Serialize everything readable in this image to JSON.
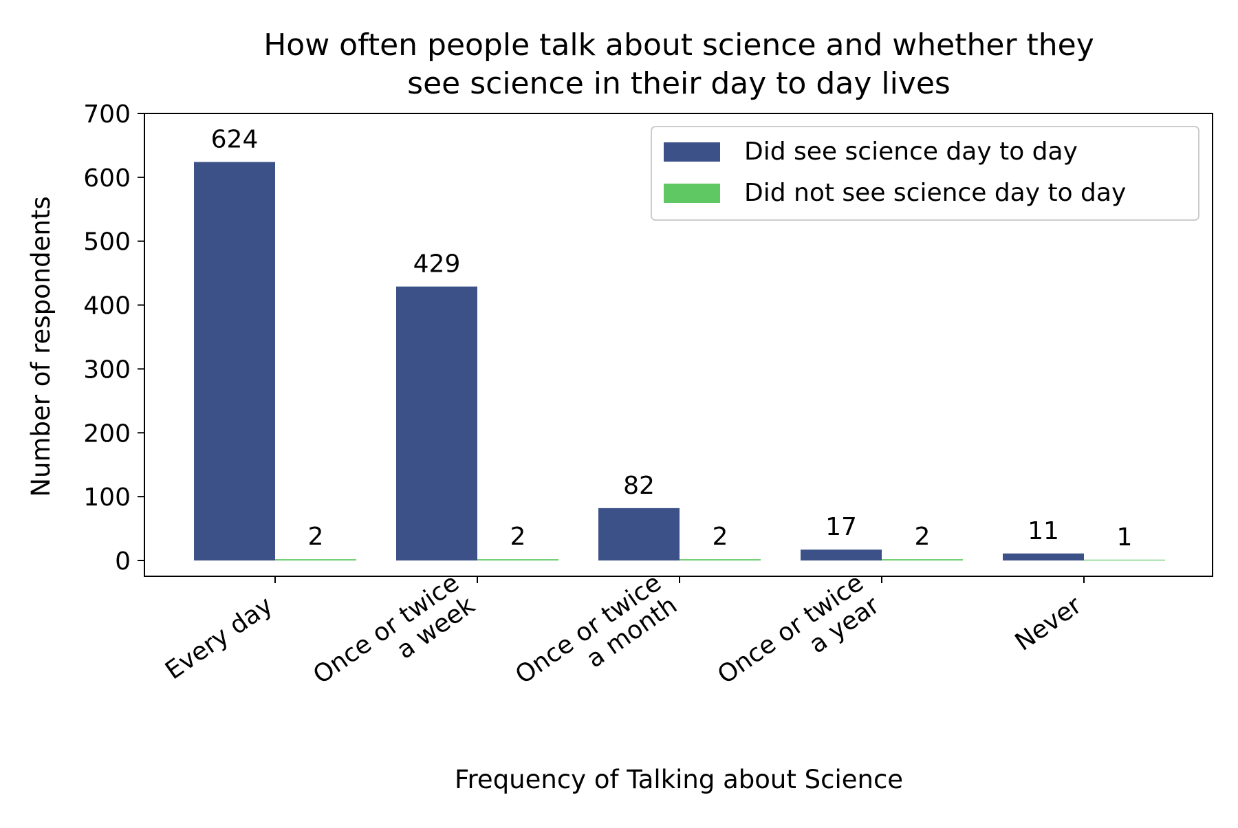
{
  "colors": {
    "series1": "#3c5188",
    "series2": "#5fc862",
    "text": "#000000",
    "axis": "#000000",
    "background": "#ffffff",
    "legend_border": "#cccccc"
  },
  "chart_data": {
    "type": "bar",
    "title_lines": [
      "How often people talk about science and whether they",
      "see science in their day to day lives"
    ],
    "xlabel": "Frequency of Talking about Science",
    "ylabel": "Number of respondents",
    "ylim": [
      0,
      700
    ],
    "yticks": [
      0,
      100,
      200,
      300,
      400,
      500,
      600,
      700
    ],
    "categories": [
      [
        "Every day"
      ],
      [
        "Once or twice",
        "a week"
      ],
      [
        "Once or twice",
        "a month"
      ],
      [
        "Once or twice",
        "a year"
      ],
      [
        "Never"
      ]
    ],
    "series": [
      {
        "name": "Did see science day to day",
        "values": [
          624,
          429,
          82,
          17,
          11
        ]
      },
      {
        "name": "Did not see science day to day",
        "values": [
          2,
          2,
          2,
          2,
          1
        ]
      }
    ],
    "legend_position": "upper right",
    "grid": false
  }
}
